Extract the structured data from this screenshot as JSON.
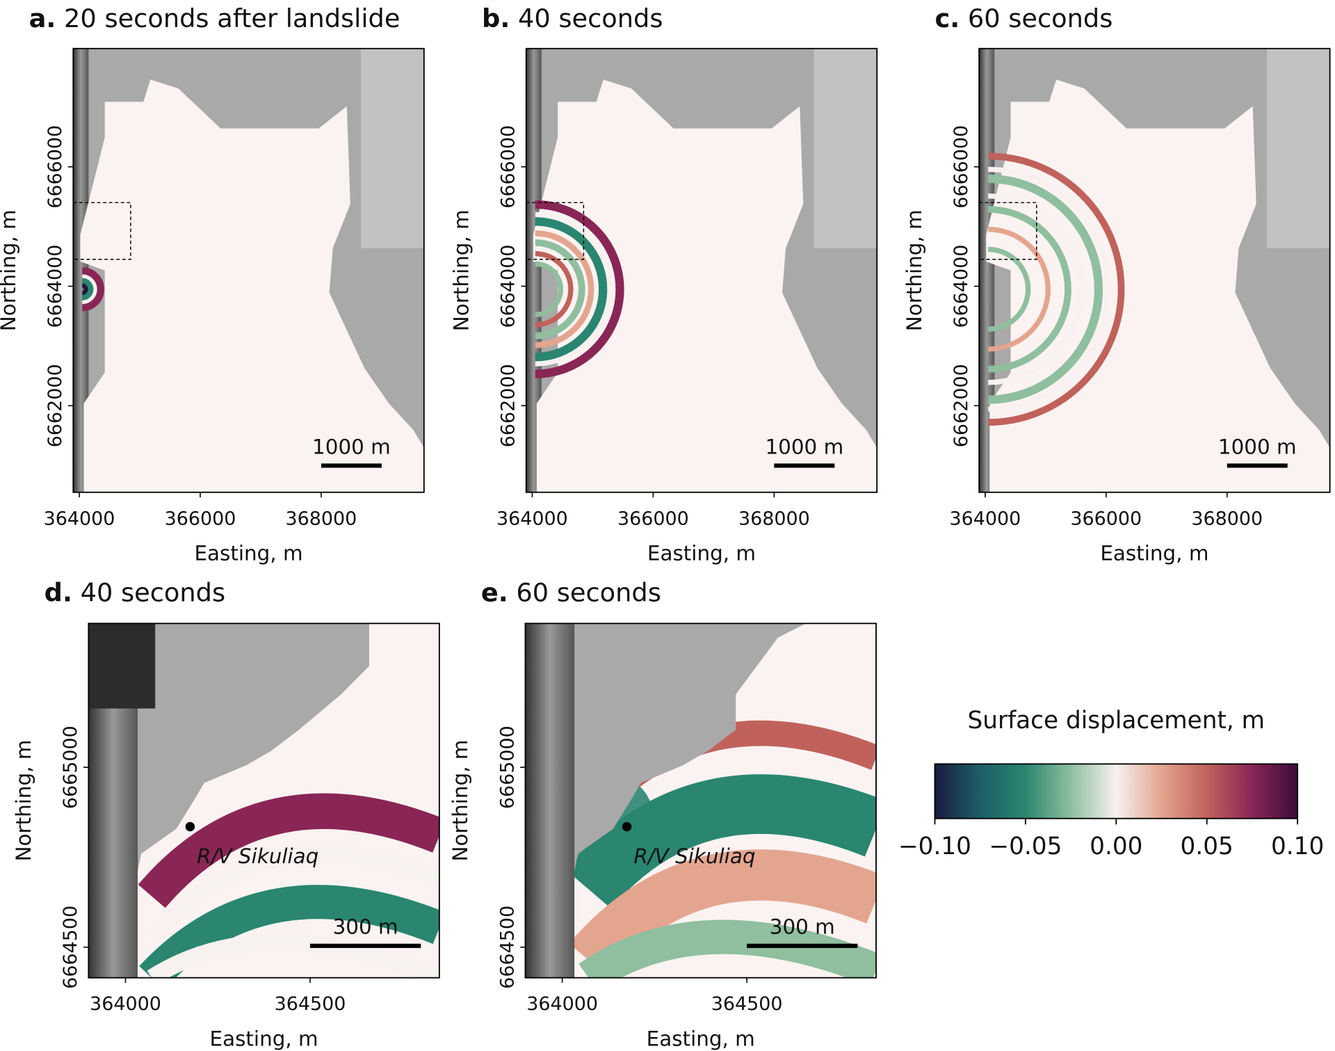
{
  "chart_data": [
    {
      "panel": "a",
      "type": "heatmap",
      "title_letter": "a.",
      "title": "20 seconds after landslide",
      "xlabel": "Easting, m",
      "ylabel": "Northing, m",
      "xticks": [
        364000,
        366000,
        368000
      ],
      "yticks": [
        6662000,
        6664000,
        6666000
      ],
      "xlim": [
        363900,
        369700
      ],
      "ylim": [
        6660550,
        6667980
      ],
      "scalebar": {
        "label": "1000 m",
        "length_m": 1000,
        "start_x": 368000
      },
      "inset_box": {
        "x": [
          363900,
          364850
        ],
        "y": [
          6664450,
          6665400
        ]
      },
      "wave_front_radius_m": 300
    },
    {
      "panel": "b",
      "type": "heatmap",
      "title_letter": "b.",
      "title": "40 seconds",
      "xlabel": "Easting, m",
      "ylabel": "Northing, m",
      "xticks": [
        364000,
        366000,
        368000
      ],
      "yticks": [
        6662000,
        6664000,
        6666000
      ],
      "xlim": [
        363900,
        369700
      ],
      "ylim": [
        6660550,
        6667980
      ],
      "scalebar": {
        "label": "1000 m",
        "length_m": 1000,
        "start_x": 368000
      },
      "inset_box": {
        "x": [
          363900,
          364850
        ],
        "y": [
          6664450,
          6665400
        ]
      },
      "wave_front_radius_m": 1400
    },
    {
      "panel": "c",
      "type": "heatmap",
      "title_letter": "c.",
      "title": "60 seconds",
      "xlabel": "Easting, m",
      "ylabel": "Northing, m",
      "xticks": [
        364000,
        366000,
        368000
      ],
      "yticks": [
        6662000,
        6664000,
        6666000
      ],
      "xlim": [
        363900,
        369700
      ],
      "ylim": [
        6660550,
        6667980
      ],
      "scalebar": {
        "label": "1000 m",
        "length_m": 1000,
        "start_x": 368000
      },
      "inset_box": {
        "x": [
          363900,
          364850
        ],
        "y": [
          6664450,
          6665400
        ]
      },
      "wave_front_radius_m": 2200
    },
    {
      "panel": "d",
      "type": "heatmap",
      "title_letter": "d.",
      "title": "40 seconds",
      "xlabel": "Easting, m",
      "ylabel": "Northing, m",
      "xticks": [
        364000,
        364500
      ],
      "yticks": [
        6664500,
        6665000
      ],
      "xlim": [
        363900,
        364850
      ],
      "ylim": [
        6664415,
        6665400
      ],
      "scalebar": {
        "label": "300 m",
        "length_m": 300,
        "start_x": 364500
      },
      "annotation": {
        "label": "R/V Sikuliaq",
        "x": 364175,
        "y": 6664835
      }
    },
    {
      "panel": "e",
      "type": "heatmap",
      "title_letter": "e.",
      "title": "60 seconds",
      "xlabel": "Easting, m",
      "ylabel": "Northing, m",
      "xticks": [
        364000,
        364500
      ],
      "yticks": [
        6664500,
        6665000
      ],
      "xlim": [
        363900,
        364850
      ],
      "ylim": [
        6664415,
        6665400
      ],
      "scalebar": {
        "label": "300 m",
        "length_m": 300,
        "start_x": 364500
      },
      "annotation": {
        "label": "R/V Sikuliaq",
        "x": 364175,
        "y": 6664835
      }
    }
  ],
  "colorbar": {
    "label": "Surface displacement, m",
    "ticks": [
      "−0.10",
      "−0.05",
      "0.00",
      "0.05",
      "0.10"
    ],
    "range": [
      -0.1,
      0.1
    ],
    "colors": [
      "#1b1c3f",
      "#1d5e66",
      "#2a8670",
      "#8fbf9f",
      "#f7f1ef",
      "#e4a58f",
      "#c0625b",
      "#892656",
      "#3a0c3a"
    ]
  },
  "colors": {
    "land": "#a9a9a9",
    "water": "#fbf3f1",
    "dark_land": "#3a3a3a"
  }
}
